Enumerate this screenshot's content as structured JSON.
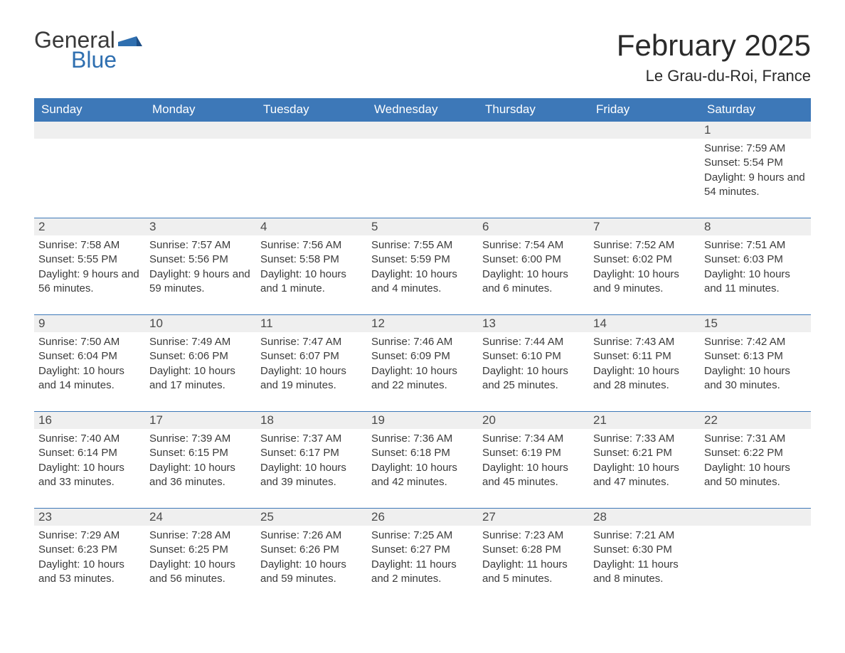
{
  "logo": {
    "text1": "General",
    "text2": "Blue"
  },
  "title": "February 2025",
  "location": "Le Grau-du-Roi, France",
  "colors": {
    "header_bg": "#3d78b8",
    "header_text": "#ffffff",
    "daynum_bg": "#efefef",
    "body_text": "#3a3a3a",
    "rule": "#3d78b8",
    "logo_blue": "#2f6fb0",
    "logo_dark": "#3a3a3a",
    "page_bg": "#ffffff"
  },
  "fonts": {
    "title_size_pt": 42,
    "location_size_pt": 22,
    "header_size_pt": 17,
    "daynum_size_pt": 17,
    "detail_size_pt": 15
  },
  "dayHeaders": [
    "Sunday",
    "Monday",
    "Tuesday",
    "Wednesday",
    "Thursday",
    "Friday",
    "Saturday"
  ],
  "weeks": [
    [
      null,
      null,
      null,
      null,
      null,
      null,
      {
        "n": "1",
        "sunrise": "Sunrise: 7:59 AM",
        "sunset": "Sunset: 5:54 PM",
        "daylight": "Daylight: 9 hours and 54 minutes."
      }
    ],
    [
      {
        "n": "2",
        "sunrise": "Sunrise: 7:58 AM",
        "sunset": "Sunset: 5:55 PM",
        "daylight": "Daylight: 9 hours and 56 minutes."
      },
      {
        "n": "3",
        "sunrise": "Sunrise: 7:57 AM",
        "sunset": "Sunset: 5:56 PM",
        "daylight": "Daylight: 9 hours and 59 minutes."
      },
      {
        "n": "4",
        "sunrise": "Sunrise: 7:56 AM",
        "sunset": "Sunset: 5:58 PM",
        "daylight": "Daylight: 10 hours and 1 minute."
      },
      {
        "n": "5",
        "sunrise": "Sunrise: 7:55 AM",
        "sunset": "Sunset: 5:59 PM",
        "daylight": "Daylight: 10 hours and 4 minutes."
      },
      {
        "n": "6",
        "sunrise": "Sunrise: 7:54 AM",
        "sunset": "Sunset: 6:00 PM",
        "daylight": "Daylight: 10 hours and 6 minutes."
      },
      {
        "n": "7",
        "sunrise": "Sunrise: 7:52 AM",
        "sunset": "Sunset: 6:02 PM",
        "daylight": "Daylight: 10 hours and 9 minutes."
      },
      {
        "n": "8",
        "sunrise": "Sunrise: 7:51 AM",
        "sunset": "Sunset: 6:03 PM",
        "daylight": "Daylight: 10 hours and 11 minutes."
      }
    ],
    [
      {
        "n": "9",
        "sunrise": "Sunrise: 7:50 AM",
        "sunset": "Sunset: 6:04 PM",
        "daylight": "Daylight: 10 hours and 14 minutes."
      },
      {
        "n": "10",
        "sunrise": "Sunrise: 7:49 AM",
        "sunset": "Sunset: 6:06 PM",
        "daylight": "Daylight: 10 hours and 17 minutes."
      },
      {
        "n": "11",
        "sunrise": "Sunrise: 7:47 AM",
        "sunset": "Sunset: 6:07 PM",
        "daylight": "Daylight: 10 hours and 19 minutes."
      },
      {
        "n": "12",
        "sunrise": "Sunrise: 7:46 AM",
        "sunset": "Sunset: 6:09 PM",
        "daylight": "Daylight: 10 hours and 22 minutes."
      },
      {
        "n": "13",
        "sunrise": "Sunrise: 7:44 AM",
        "sunset": "Sunset: 6:10 PM",
        "daylight": "Daylight: 10 hours and 25 minutes."
      },
      {
        "n": "14",
        "sunrise": "Sunrise: 7:43 AM",
        "sunset": "Sunset: 6:11 PM",
        "daylight": "Daylight: 10 hours and 28 minutes."
      },
      {
        "n": "15",
        "sunrise": "Sunrise: 7:42 AM",
        "sunset": "Sunset: 6:13 PM",
        "daylight": "Daylight: 10 hours and 30 minutes."
      }
    ],
    [
      {
        "n": "16",
        "sunrise": "Sunrise: 7:40 AM",
        "sunset": "Sunset: 6:14 PM",
        "daylight": "Daylight: 10 hours and 33 minutes."
      },
      {
        "n": "17",
        "sunrise": "Sunrise: 7:39 AM",
        "sunset": "Sunset: 6:15 PM",
        "daylight": "Daylight: 10 hours and 36 minutes."
      },
      {
        "n": "18",
        "sunrise": "Sunrise: 7:37 AM",
        "sunset": "Sunset: 6:17 PM",
        "daylight": "Daylight: 10 hours and 39 minutes."
      },
      {
        "n": "19",
        "sunrise": "Sunrise: 7:36 AM",
        "sunset": "Sunset: 6:18 PM",
        "daylight": "Daylight: 10 hours and 42 minutes."
      },
      {
        "n": "20",
        "sunrise": "Sunrise: 7:34 AM",
        "sunset": "Sunset: 6:19 PM",
        "daylight": "Daylight: 10 hours and 45 minutes."
      },
      {
        "n": "21",
        "sunrise": "Sunrise: 7:33 AM",
        "sunset": "Sunset: 6:21 PM",
        "daylight": "Daylight: 10 hours and 47 minutes."
      },
      {
        "n": "22",
        "sunrise": "Sunrise: 7:31 AM",
        "sunset": "Sunset: 6:22 PM",
        "daylight": "Daylight: 10 hours and 50 minutes."
      }
    ],
    [
      {
        "n": "23",
        "sunrise": "Sunrise: 7:29 AM",
        "sunset": "Sunset: 6:23 PM",
        "daylight": "Daylight: 10 hours and 53 minutes."
      },
      {
        "n": "24",
        "sunrise": "Sunrise: 7:28 AM",
        "sunset": "Sunset: 6:25 PM",
        "daylight": "Daylight: 10 hours and 56 minutes."
      },
      {
        "n": "25",
        "sunrise": "Sunrise: 7:26 AM",
        "sunset": "Sunset: 6:26 PM",
        "daylight": "Daylight: 10 hours and 59 minutes."
      },
      {
        "n": "26",
        "sunrise": "Sunrise: 7:25 AM",
        "sunset": "Sunset: 6:27 PM",
        "daylight": "Daylight: 11 hours and 2 minutes."
      },
      {
        "n": "27",
        "sunrise": "Sunrise: 7:23 AM",
        "sunset": "Sunset: 6:28 PM",
        "daylight": "Daylight: 11 hours and 5 minutes."
      },
      {
        "n": "28",
        "sunrise": "Sunrise: 7:21 AM",
        "sunset": "Sunset: 6:30 PM",
        "daylight": "Daylight: 11 hours and 8 minutes."
      },
      null
    ]
  ]
}
